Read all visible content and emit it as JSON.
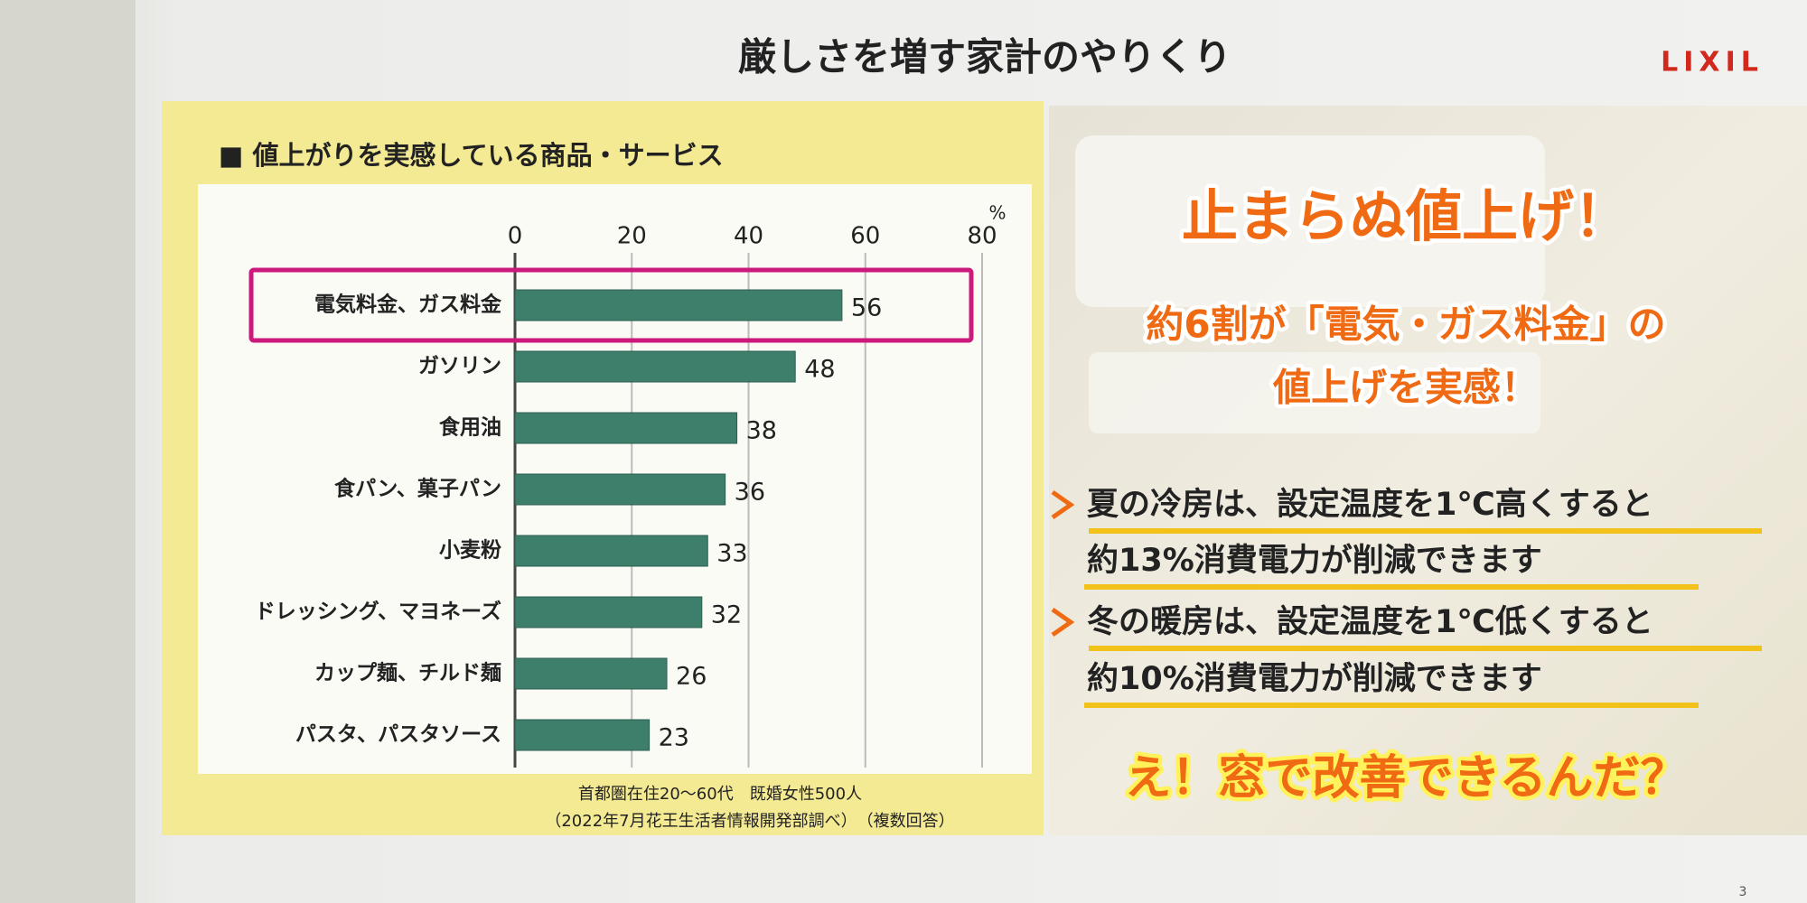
{
  "slide": {
    "title": "厳しさを増す家計のやりくり",
    "logo": "LIXIL",
    "page_number": "3"
  },
  "chart_data": {
    "type": "hbar",
    "title": "■ 値上がりを実感している商品・サービス",
    "x_unit": "%",
    "categories": [
      "電気料金、ガス料金",
      "ガソリン",
      "食用油",
      "食パン、菓子パン",
      "小麦粉",
      "ドレッシング、マヨネーズ",
      "カップ麺、チルド麺",
      "パスタ、パスタソース"
    ],
    "values": [
      56,
      48,
      38,
      36,
      33,
      32,
      26,
      23
    ],
    "color": "#3e7f6c",
    "xlim": [
      0,
      80
    ],
    "xticks": [
      0,
      20,
      40,
      60,
      80
    ],
    "grid": true,
    "notes": [
      "首都圏在住20～60代　既婚女性500人",
      "（2022年7月花王生活者情報開発部調べ）　（複数回答）"
    ]
  },
  "callout": {
    "headline": "止まらぬ値上げ！",
    "summary": [
      "約6割が「電気・ガス料金」の",
      "値上げを実感！"
    ],
    "tips": [
      [
        "夏の冷房は、設定温度を1℃高くすると",
        "約13%消費電力が削減できます"
      ],
      [
        "冬の暖房は、設定温度を1℃低くすると",
        "約10%消費電力が削減できます"
      ]
    ],
    "closing": "え！窓で改善できるんだ？"
  }
}
